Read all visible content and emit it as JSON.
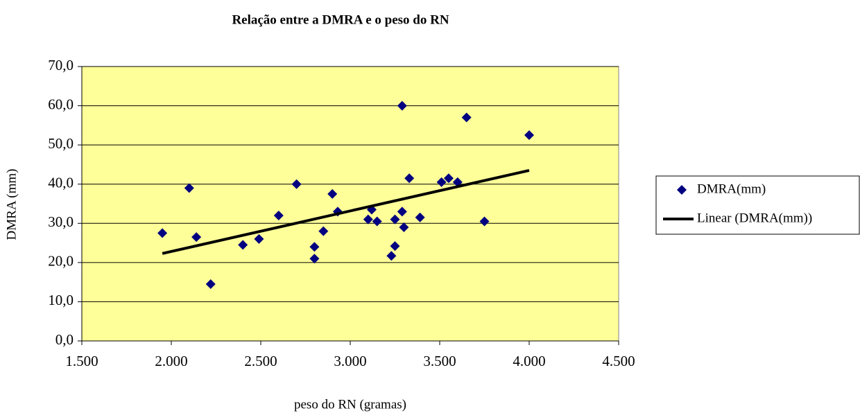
{
  "chart_data": {
    "type": "scatter",
    "title": "Relação entre a DMRA e o peso do RN",
    "x_label": "peso do RN (gramas)",
    "y_label": "DMRA (mm)",
    "xlim": [
      1500,
      4500
    ],
    "xticks": [
      {
        "value": 1500,
        "label": "1.500"
      },
      {
        "value": 2000,
        "label": "2.000"
      },
      {
        "value": 2500,
        "label": "2.500"
      },
      {
        "value": 3000,
        "label": "3.000"
      },
      {
        "value": 3500,
        "label": "3.500"
      },
      {
        "value": 4000,
        "label": "4.000"
      },
      {
        "value": 4500,
        "label": "4.500"
      }
    ],
    "ylim": [
      0,
      70
    ],
    "yticks": [
      {
        "value": 0,
        "label": "0,0"
      },
      {
        "value": 10,
        "label": "10,0"
      },
      {
        "value": 20,
        "label": "20,0"
      },
      {
        "value": 30,
        "label": "30,0"
      },
      {
        "value": 40,
        "label": "40,0"
      },
      {
        "value": 50,
        "label": "50,0"
      },
      {
        "value": 60,
        "label": "60,0"
      },
      {
        "value": 70,
        "label": "70,0"
      }
    ],
    "grid": true,
    "plot_background": "#ffff99",
    "legend": "right",
    "series": [
      {
        "name": "DMRA(mm)",
        "type": "scatter",
        "color": "#000080",
        "x": [
          1950,
          2100,
          2140,
          2220,
          2400,
          2490,
          2600,
          2700,
          2800,
          2800,
          2850,
          2900,
          2930,
          3100,
          3120,
          3150,
          3230,
          3250,
          3250,
          3290,
          3290,
          3300,
          3330,
          3390,
          3510,
          3550,
          3600,
          3650,
          3750,
          4000
        ],
        "values": [
          27.5,
          39,
          26.5,
          14.5,
          24.5,
          26,
          32,
          40,
          24,
          21,
          28,
          37.5,
          33,
          31,
          33.5,
          30.5,
          21.7,
          24.2,
          31,
          33,
          60,
          29,
          41.5,
          31.5,
          40.5,
          41.5,
          40.5,
          57,
          30.5,
          52.5
        ]
      },
      {
        "name": "Linear (DMRA(mm))",
        "type": "line",
        "color": "#000000",
        "x": [
          1950,
          4000
        ],
        "values": [
          22.3,
          43.5
        ]
      }
    ]
  }
}
